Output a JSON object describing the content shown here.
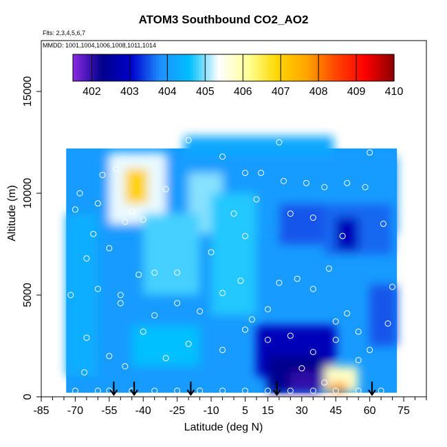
{
  "chart_data": {
    "type": "heatmap",
    "title": "ATOM3 Southbound CO2_AO2",
    "subtitle_flights": "Flts: 2,3,4,5,6,7",
    "subtitle_dates": "MMDD: 1001,1004,1006,1008,1011,1014",
    "xlabel": "Latitude (deg N)",
    "ylabel": "Altitude (m)",
    "xlim": [
      -85,
      85
    ],
    "ylim": [
      0,
      17500
    ],
    "x_tick_labels": [
      "-85",
      "-70",
      "-55",
      "-40",
      "-25",
      "-10",
      "5",
      "15",
      "30",
      "45",
      "60",
      "75"
    ],
    "x_tick_values": [
      -85,
      -70,
      -55,
      -40,
      -25,
      -10,
      5,
      15,
      30,
      45,
      60,
      75
    ],
    "y_tick_labels": [
      "0",
      "5000",
      "10000",
      "15000"
    ],
    "y_tick_values": [
      0,
      5000,
      10000,
      15000
    ],
    "colorbar": {
      "min": 401.5,
      "max": 410,
      "tick_labels": [
        "402",
        "403",
        "404",
        "405",
        "406",
        "407",
        "408",
        "409",
        "410"
      ],
      "tick_values": [
        402,
        403,
        404,
        405,
        406,
        407,
        408,
        409,
        410
      ],
      "colors": [
        "#8a2be2",
        "#00008b",
        "#0000cd",
        "#1e90ff",
        "#00bfff",
        "#ffffff",
        "#ffff99",
        "#ffd700",
        "#ffa500",
        "#ff4500",
        "#ff0000",
        "#8b0000"
      ]
    },
    "regions": [
      {
        "lat": [
          -74,
          72
        ],
        "alt": [
          200,
          12200
        ],
        "value": 404.0
      },
      {
        "lat": [
          -22,
          44
        ],
        "alt": [
          11500,
          12800
        ],
        "value": 404.2
      },
      {
        "lat": [
          -60,
          72
        ],
        "alt": [
          8000,
          11800
        ],
        "value": 404.0
      },
      {
        "lat": [
          -55,
          -30
        ],
        "alt": [
          8500,
          12000
        ],
        "value": 405.3
      },
      {
        "lat": [
          -48,
          -38
        ],
        "alt": [
          9500,
          11200
        ],
        "value": 407.0
      },
      {
        "lat": [
          -20,
          -5
        ],
        "alt": [
          8000,
          11000
        ],
        "value": 405.0
      },
      {
        "lat": [
          -40,
          -15
        ],
        "alt": [
          5000,
          9000
        ],
        "value": 404.8
      },
      {
        "lat": [
          -45,
          -15
        ],
        "alt": [
          1500,
          3500
        ],
        "value": 404.6
      },
      {
        "lat": [
          -10,
          10
        ],
        "alt": [
          4000,
          10000
        ],
        "value": 404.7
      },
      {
        "lat": [
          40,
          70
        ],
        "alt": [
          7000,
          9500
        ],
        "value": 403.6
      },
      {
        "lat": [
          45,
          55
        ],
        "alt": [
          7200,
          8800
        ],
        "value": 402.8
      },
      {
        "lat": [
          20,
          40
        ],
        "alt": [
          7500,
          9500
        ],
        "value": 403.5
      },
      {
        "lat": [
          10,
          45
        ],
        "alt": [
          1000,
          3500
        ],
        "value": 402.8
      },
      {
        "lat": [
          15,
          40
        ],
        "alt": [
          200,
          2000
        ],
        "value": 402.3
      },
      {
        "lat": [
          25,
          40
        ],
        "alt": [
          200,
          1200
        ],
        "value": 402.0
      },
      {
        "lat": [
          40,
          55
        ],
        "alt": [
          200,
          1500
        ],
        "value": 405.8
      },
      {
        "lat": [
          42,
          50
        ],
        "alt": [
          200,
          700
        ],
        "value": 407.8
      },
      {
        "lat": [
          60,
          72
        ],
        "alt": [
          2500,
          5500
        ],
        "value": 403.5
      },
      {
        "lat": [
          -74,
          -60
        ],
        "alt": [
          1000,
          9000
        ],
        "value": 404.3
      }
    ],
    "points": [
      {
        "lat": -68,
        "alt": 10000
      },
      {
        "lat": -70,
        "alt": 9200
      },
      {
        "lat": -60,
        "alt": 9500
      },
      {
        "lat": -58,
        "alt": 10900
      },
      {
        "lat": -52,
        "alt": 11200
      },
      {
        "lat": -45,
        "alt": 9100
      },
      {
        "lat": -40,
        "alt": 8700
      },
      {
        "lat": -48,
        "alt": 8600
      },
      {
        "lat": -55,
        "alt": 7300
      },
      {
        "lat": -65,
        "alt": 6800
      },
      {
        "lat": -72,
        "alt": 5000
      },
      {
        "lat": -60,
        "alt": 5300
      },
      {
        "lat": -50,
        "alt": 5000
      },
      {
        "lat": -42,
        "alt": 6000
      },
      {
        "lat": -35,
        "alt": 6100
      },
      {
        "lat": -25,
        "alt": 4600
      },
      {
        "lat": -15,
        "alt": 4200
      },
      {
        "lat": -5,
        "alt": 5100
      },
      {
        "lat": 3,
        "alt": 5700
      },
      {
        "lat": 8,
        "alt": 3800
      },
      {
        "lat": 15,
        "alt": 4300
      },
      {
        "lat": 20,
        "alt": 5600
      },
      {
        "lat": 28,
        "alt": 5800
      },
      {
        "lat": 35,
        "alt": 5300
      },
      {
        "lat": 42,
        "alt": 6300
      },
      {
        "lat": 45,
        "alt": 3700
      },
      {
        "lat": 50,
        "alt": 4100
      },
      {
        "lat": 55,
        "alt": 3200
      },
      {
        "lat": 60,
        "alt": 2300
      },
      {
        "lat": 68,
        "alt": 3600
      },
      {
        "lat": 70,
        "alt": 5400
      },
      {
        "lat": 66,
        "alt": 8500
      },
      {
        "lat": 58,
        "alt": 10300
      },
      {
        "lat": 50,
        "alt": 10500
      },
      {
        "lat": 40,
        "alt": 10300
      },
      {
        "lat": 32,
        "alt": 10500
      },
      {
        "lat": 22,
        "alt": 10600
      },
      {
        "lat": 12,
        "alt": 11000
      },
      {
        "lat": 5,
        "alt": 11000
      },
      {
        "lat": -5,
        "alt": 11800
      },
      {
        "lat": -20,
        "alt": 12600
      },
      {
        "lat": 20,
        "alt": 12500
      },
      {
        "lat": 60,
        "alt": 12000
      },
      {
        "lat": -30,
        "alt": 10200
      },
      {
        "lat": 10,
        "alt": 9700
      },
      {
        "lat": 25,
        "alt": 9000
      },
      {
        "lat": 35,
        "alt": 8800
      },
      {
        "lat": 48,
        "alt": 7900
      },
      {
        "lat": 5,
        "alt": 7900
      },
      {
        "lat": -10,
        "alt": 7100
      },
      {
        "lat": -25,
        "alt": 6100
      },
      {
        "lat": -50,
        "alt": 4600
      },
      {
        "lat": -65,
        "alt": 2900
      },
      {
        "lat": -55,
        "alt": 2000
      },
      {
        "lat": -40,
        "alt": 3200
      },
      {
        "lat": -30,
        "alt": 1900
      },
      {
        "lat": -20,
        "alt": 2600
      },
      {
        "lat": -5,
        "alt": 2300
      },
      {
        "lat": 5,
        "alt": 3300
      },
      {
        "lat": 15,
        "alt": 2800
      },
      {
        "lat": 25,
        "alt": 3000
      },
      {
        "lat": 35,
        "alt": 2200
      },
      {
        "lat": 45,
        "alt": 2800
      },
      {
        "lat": 55,
        "alt": 1800
      },
      {
        "lat": 30,
        "alt": 1400
      },
      {
        "lat": 40,
        "alt": 700
      },
      {
        "lat": -70,
        "alt": 300
      },
      {
        "lat": -60,
        "alt": 300
      },
      {
        "lat": -55,
        "alt": 300
      },
      {
        "lat": -45,
        "alt": 300
      },
      {
        "lat": -35,
        "alt": 300
      },
      {
        "lat": -25,
        "alt": 300
      },
      {
        "lat": -15,
        "alt": 300
      },
      {
        "lat": -5,
        "alt": 300
      },
      {
        "lat": 5,
        "alt": 300
      },
      {
        "lat": 15,
        "alt": 300
      },
      {
        "lat": 25,
        "alt": 300
      },
      {
        "lat": 35,
        "alt": 300
      },
      {
        "lat": 45,
        "alt": 300
      },
      {
        "lat": 55,
        "alt": 300
      },
      {
        "lat": 65,
        "alt": 300
      },
      {
        "lat": -62,
        "alt": 8000
      },
      {
        "lat": -35,
        "alt": 4000
      },
      {
        "lat": 0,
        "alt": 9000
      },
      {
        "lat": -66,
        "alt": 1200
      },
      {
        "lat": -48,
        "alt": 1500
      }
    ],
    "arrows_latitude": [
      -53,
      -44,
      -19,
      19,
      61
    ]
  }
}
